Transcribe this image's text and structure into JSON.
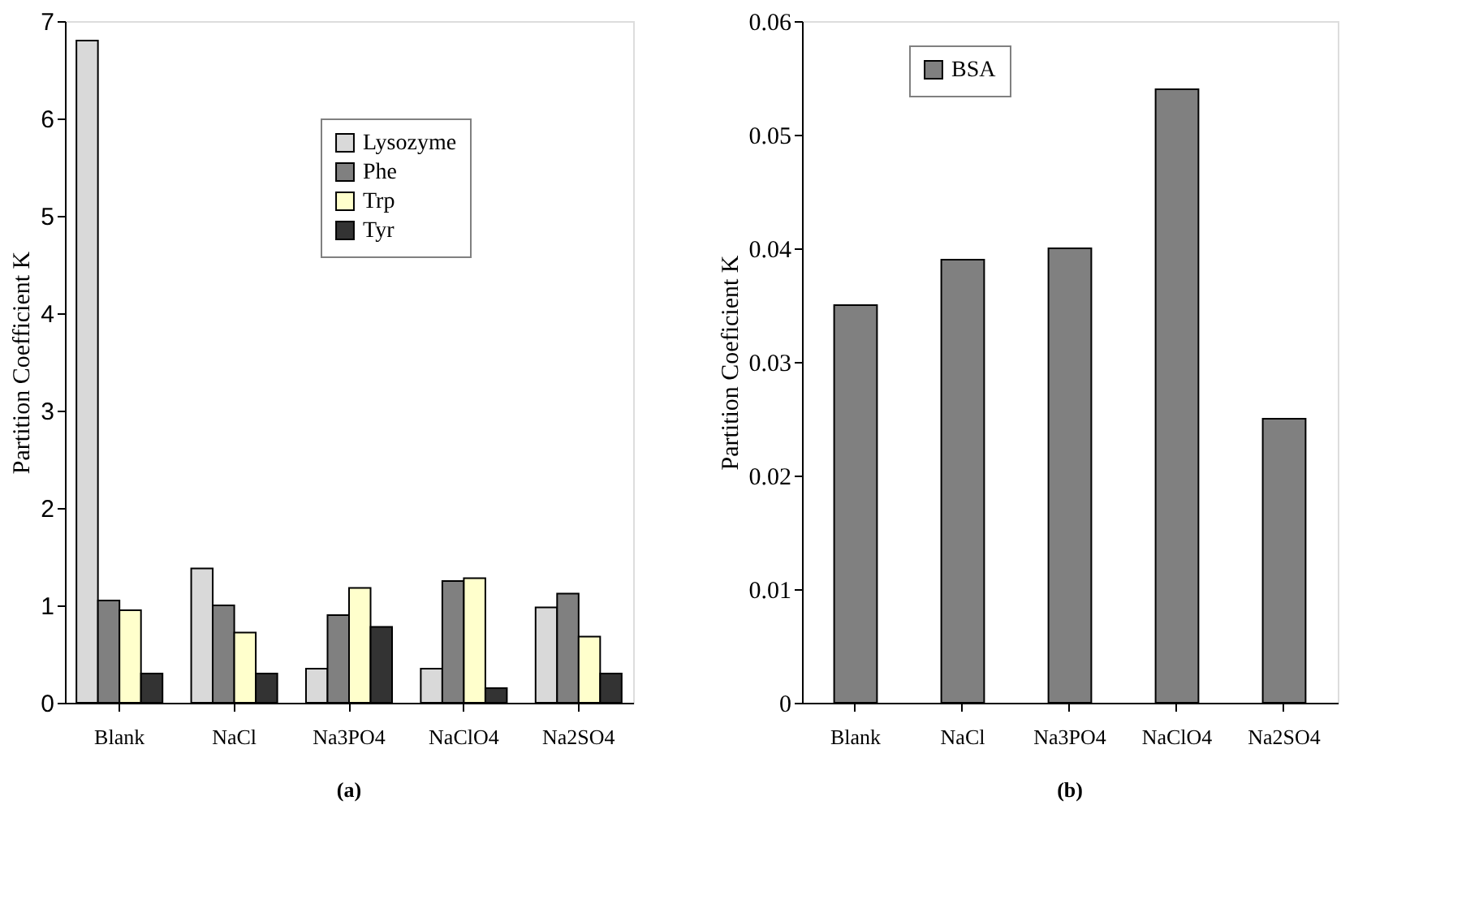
{
  "chart_data": [
    {
      "type": "bar",
      "ylabel": "Partition Coefficient K",
      "categories": [
        "Blank",
        "NaCl",
        "Na3PO4",
        "NaClO4",
        "Na2SO4"
      ],
      "series": [
        {
          "name": "Lysozyme",
          "color": "#d9d9d9",
          "values": [
            6.8,
            1.38,
            0.35,
            0.35,
            0.98
          ]
        },
        {
          "name": "Phe",
          "color": "#808080",
          "values": [
            1.05,
            1.0,
            0.9,
            1.25,
            1.12
          ]
        },
        {
          "name": "Trp",
          "color": "#ffffcc",
          "values": [
            0.95,
            0.72,
            1.18,
            1.28,
            0.68
          ]
        },
        {
          "name": "Tyr",
          "color": "#333333",
          "values": [
            0.3,
            0.3,
            0.78,
            0.15,
            0.3
          ]
        }
      ],
      "ylim": [
        0,
        7
      ],
      "yticks": [
        0,
        1,
        2,
        3,
        4,
        5,
        6,
        7
      ],
      "grid": false,
      "legend": "top right",
      "annotations": [
        "(a)"
      ]
    },
    {
      "type": "bar",
      "ylabel": "Partition Coeficient K",
      "categories": [
        "Blank",
        "NaCl",
        "Na3PO4",
        "NaClO4",
        "Na2SO4"
      ],
      "series": [
        {
          "name": "BSA",
          "color": "#808080",
          "values": [
            0.035,
            0.039,
            0.04,
            0.054,
            0.025
          ]
        }
      ],
      "ylim": [
        0,
        0.06
      ],
      "yticks": [
        0,
        0.01,
        0.02,
        0.03,
        0.04,
        0.05,
        0.06
      ],
      "grid": false,
      "legend": "top left",
      "annotations": [
        "(b)"
      ]
    }
  ]
}
